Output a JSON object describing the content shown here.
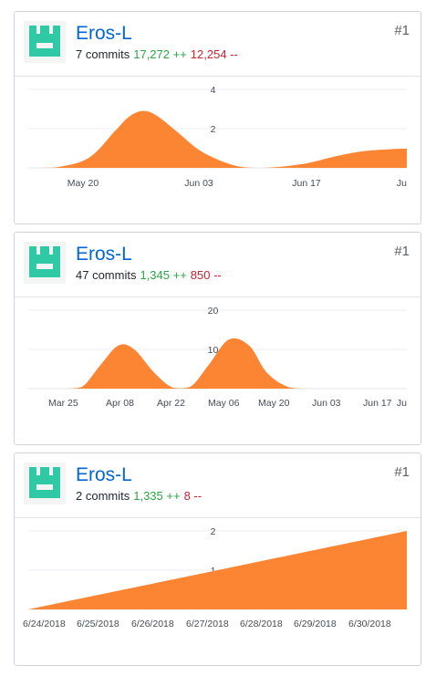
{
  "colors": {
    "link": "#0366d6",
    "additions": "#28a745",
    "deletions": "#cb2431",
    "area_fill": "#fb8532",
    "avatar": "#2fc9a6"
  },
  "cards": [
    {
      "username": "Eros-L",
      "commits": "7 commits",
      "additions": "17,272 ++",
      "deletions": "12,254 --",
      "rank": "#1",
      "avatar_icon": "identicon-avatar-icon"
    },
    {
      "username": "Eros-L",
      "commits": "47 commits",
      "additions": "1,345 ++",
      "deletions": "850 --",
      "rank": "#1",
      "avatar_icon": "identicon-avatar-icon"
    },
    {
      "username": "Eros-L",
      "commits": "2 commits",
      "additions": "1,335 ++",
      "deletions": "8 --",
      "rank": "#1",
      "avatar_icon": "identicon-avatar-icon"
    }
  ],
  "chart_data": [
    {
      "type": "area",
      "x_tick_labels": [
        "May 20",
        "Jun 03",
        "Jun 17",
        "Ju"
      ],
      "y_tick_labels": [
        "2",
        "4"
      ],
      "ylim": [
        0,
        4
      ],
      "grid": true,
      "series": [
        {
          "points": [
            [
              0,
              0
            ],
            [
              0.8,
              0.02
            ],
            [
              1.8,
              0.5
            ],
            [
              2.6,
              1.9
            ],
            [
              3.0,
              2.6
            ],
            [
              3.4,
              2.9
            ],
            [
              3.8,
              2.7
            ],
            [
              4.4,
              1.9
            ],
            [
              5.2,
              0.8
            ],
            [
              6.2,
              0.1
            ],
            [
              7.0,
              0.0
            ],
            [
              8.2,
              0.2
            ],
            [
              9.2,
              0.6
            ],
            [
              10.0,
              0.85
            ],
            [
              10.8,
              0.95
            ],
            [
              11.3,
              0.98
            ]
          ]
        }
      ],
      "xlim": [
        0,
        11.3
      ]
    },
    {
      "type": "area",
      "x_tick_labels": [
        "Mar 25",
        "Apr 08",
        "Apr 22",
        "May 06",
        "May 20",
        "Jun 03",
        "Jun 17",
        "Ju"
      ],
      "y_tick_labels": [
        "10",
        "20"
      ],
      "ylim": [
        0,
        20
      ],
      "grid": true,
      "series": [
        {
          "points": [
            [
              0,
              0
            ],
            [
              0.8,
              0
            ],
            [
              1.2,
              0.5
            ],
            [
              1.6,
              6
            ],
            [
              2.0,
              11
            ],
            [
              2.35,
              10
            ],
            [
              2.8,
              4
            ],
            [
              3.2,
              0.3
            ],
            [
              3.6,
              0.5
            ],
            [
              4.0,
              6
            ],
            [
              4.45,
              12.5
            ],
            [
              4.9,
              11
            ],
            [
              5.3,
              4
            ],
            [
              5.8,
              0.3
            ],
            [
              6.4,
              0
            ],
            [
              8.4,
              0
            ]
          ]
        }
      ],
      "xlim": [
        0,
        8.4
      ]
    },
    {
      "type": "area",
      "x_tick_labels": [
        "6/24/2018",
        "6/25/2018",
        "6/26/2018",
        "6/27/2018",
        "6/28/2018",
        "6/29/2018",
        "6/30/2018"
      ],
      "y_tick_labels": [
        "1",
        "2"
      ],
      "ylim": [
        0,
        2
      ],
      "grid": true,
      "series": [
        {
          "points": [
            [
              0,
              0
            ],
            [
              7,
              2
            ]
          ]
        }
      ],
      "xlim": [
        0,
        7
      ]
    }
  ]
}
